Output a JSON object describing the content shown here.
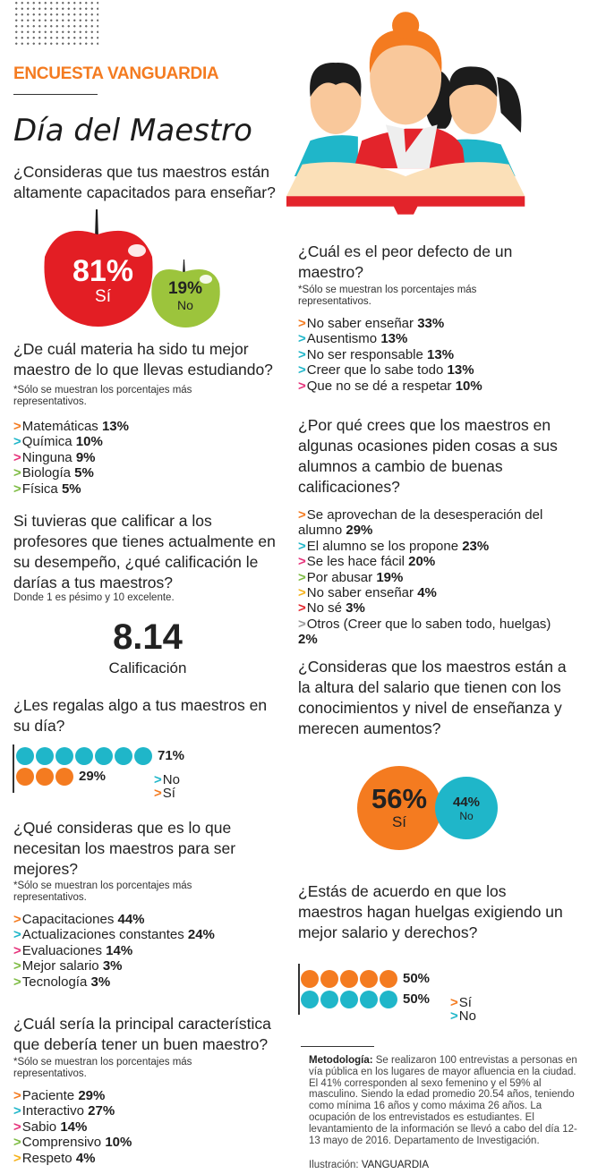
{
  "header": {
    "brand": "ENCUESTA VANGUARDIA",
    "title": "Día del Maestro"
  },
  "colors": {
    "orange": "#f47b20",
    "cyan": "#1fb6c9",
    "pink": "#e6317a",
    "green": "#7dbb42",
    "yellow": "#f6b21b",
    "red": "#e3242b",
    "gray": "#9a9a9a",
    "apple_red": "#e31e24",
    "apple_green": "#9cc43c"
  },
  "q1": {
    "question": "¿Consideras que tus maestros están altamente capacitados para enseñar?",
    "yes_pct": "81%",
    "yes_label": "Sí",
    "no_pct": "19%",
    "no_label": "No"
  },
  "q2": {
    "question": "¿De cuál materia ha sido tu mejor maestro de lo que llevas estudiando?",
    "note": "*Sólo se muestran los porcentajes más representativos.",
    "items": [
      {
        "label": "Matemáticas",
        "value": "13%",
        "color": "#f47b20"
      },
      {
        "label": "Química",
        "value": "10%",
        "color": "#1fb6c9"
      },
      {
        "label": "Ninguna",
        "value": "9%",
        "color": "#e6317a"
      },
      {
        "label": "Biología",
        "value": "5%",
        "color": "#7dbb42"
      },
      {
        "label": "Física",
        "value": "5%",
        "color": "#7dbb42"
      }
    ]
  },
  "q3": {
    "question": "Si tuvieras que calificar a los profesores que tienes actualmente en su desempeño, ¿qué calificación le darías a tus maestros?",
    "note": "Donde 1 es pésimo y 10 excelente.",
    "grade": "8.14",
    "grade_label": "Calificación"
  },
  "q4": {
    "question": "¿Les regalas algo a tus maestros en su día?",
    "rows": [
      {
        "dots": 7,
        "value": "71%",
        "color": "#1fb6c9"
      },
      {
        "dots": 3,
        "value": "29%",
        "color": "#f47b20"
      }
    ],
    "legend": [
      {
        "label": "No",
        "color": "#1fb6c9"
      },
      {
        "label": "Sí",
        "color": "#f47b20"
      }
    ]
  },
  "q5": {
    "question": "¿Qué consideras que es lo que necesitan los maestros para ser mejores?",
    "note": "*Sólo se muestran los porcentajes más representativos.",
    "items": [
      {
        "label": "Capacitaciones",
        "value": "44%",
        "color": "#f47b20"
      },
      {
        "label": "Actualizaciones constantes",
        "value": "24%",
        "color": "#1fb6c9"
      },
      {
        "label": "Evaluaciones",
        "value": "14%",
        "color": "#e6317a"
      },
      {
        "label": "Mejor salario",
        "value": "3%",
        "color": "#7dbb42"
      },
      {
        "label": "Tecnología",
        "value": "3%",
        "color": "#7dbb42"
      }
    ]
  },
  "q6": {
    "question": "¿Cuál  sería la principal característica que debería tener un buen maestro?",
    "note": "*Sólo se muestran los porcentajes más representativos.",
    "items": [
      {
        "label": "Paciente",
        "value": "29%",
        "color": "#f47b20"
      },
      {
        "label": "Interactivo",
        "value": "27%",
        "color": "#1fb6c9"
      },
      {
        "label": "Sabio",
        "value": "14%",
        "color": "#e6317a"
      },
      {
        "label": "Comprensivo",
        "value": "10%",
        "color": "#7dbb42"
      },
      {
        "label": "Respeto",
        "value": "4%",
        "color": "#f6b21b"
      }
    ]
  },
  "q7": {
    "question": "¿Cuál es el peor defecto de un maestro?",
    "note": "*Sólo se muestran los porcentajes más representativos.",
    "items": [
      {
        "label": "No saber enseñar",
        "value": "33%",
        "color": "#f47b20"
      },
      {
        "label": "Ausentismo",
        "value": "13%",
        "color": "#1fb6c9"
      },
      {
        "label": "No ser responsable",
        "value": "13%",
        "color": "#1fb6c9"
      },
      {
        "label": "Creer que lo sabe todo",
        "value": "13%",
        "color": "#1fb6c9"
      },
      {
        "label": "Que no se dé a respetar",
        "value": "10%",
        "color": "#e6317a"
      }
    ]
  },
  "q8": {
    "question": "¿Por qué crees que los maestros en algunas ocasiones piden cosas a sus alumnos a cambio de buenas calificaciones?",
    "items": [
      {
        "label": "Se aprovechan de la desesperación del alumno",
        "value": "29%",
        "color": "#f47b20"
      },
      {
        "label": "El alumno se los propone",
        "value": "23%",
        "color": "#1fb6c9"
      },
      {
        "label": "Se les hace fácil",
        "value": "20%",
        "color": "#e6317a"
      },
      {
        "label": "Por abusar",
        "value": "19%",
        "color": "#7dbb42"
      },
      {
        "label": "No saber enseñar",
        "value": "4%",
        "color": "#f6b21b"
      },
      {
        "label": "No sé",
        "value": "3%",
        "color": "#e3242b"
      },
      {
        "label": "Otros (Creer que lo saben todo, huelgas)",
        "value": "2%",
        "color": "#9a9a9a"
      }
    ]
  },
  "q9": {
    "question": "¿Consideras que los maestros están a la altura  del salario que tienen con los conocimientos y nivel de enseñanza y merecen aumentos?",
    "yes_pct": "56%",
    "yes_label": "Sí",
    "no_pct": "44%",
    "no_label": "No"
  },
  "q10": {
    "question": "¿Estás de acuerdo en que los maestros hagan huelgas exigiendo un mejor salario y derechos?",
    "rows": [
      {
        "dots": 5,
        "value": "50%",
        "color": "#f47b20"
      },
      {
        "dots": 5,
        "value": "50%",
        "color": "#1fb6c9"
      }
    ],
    "legend": [
      {
        "label": "Sí",
        "color": "#f47b20"
      },
      {
        "label": "No",
        "color": "#1fb6c9"
      }
    ]
  },
  "footer": {
    "method_label": "Metodología:",
    "method_text": " Se realizaron 100 entrevistas a personas en vía pública en los lugares de mayor afluencia en la ciudad. El 41% corresponden al sexo femenino y el 59% al masculino. Siendo la edad promedio 20.54 años, teniendo como mínima 16 años y como máxima 26 años. La ocupación de los entrevistados es estudiantes. El levantamiento de la información se llevó a cabo del día 12-13 mayo de 2016. Departamento de Investigación.",
    "credit_label": "Ilustración: ",
    "credit_name": "VANGUARDIA"
  },
  "chart_data": [
    {
      "type": "pie",
      "title": "¿Consideras que tus maestros están altamente capacitados para enseñar?",
      "categories": [
        "Sí",
        "No"
      ],
      "values": [
        81,
        19
      ]
    },
    {
      "type": "bar",
      "title": "¿De cuál materia ha sido tu mejor maestro?",
      "categories": [
        "Matemáticas",
        "Química",
        "Ninguna",
        "Biología",
        "Física"
      ],
      "values": [
        13,
        10,
        9,
        5,
        5
      ]
    },
    {
      "type": "table",
      "title": "Calificación a los maestros",
      "values": [
        8.14
      ]
    },
    {
      "type": "bar",
      "title": "¿Les regalas algo a tus maestros en su día?",
      "categories": [
        "No",
        "Sí"
      ],
      "values": [
        71,
        29
      ]
    },
    {
      "type": "bar",
      "title": "¿Qué necesitan los maestros para ser mejores?",
      "categories": [
        "Capacitaciones",
        "Actualizaciones constantes",
        "Evaluaciones",
        "Mejor salario",
        "Tecnología"
      ],
      "values": [
        44,
        24,
        14,
        3,
        3
      ]
    },
    {
      "type": "bar",
      "title": "Principal característica de un buen maestro",
      "categories": [
        "Paciente",
        "Interactivo",
        "Sabio",
        "Comprensivo",
        "Respeto"
      ],
      "values": [
        29,
        27,
        14,
        10,
        4
      ]
    },
    {
      "type": "bar",
      "title": "Peor defecto de un maestro",
      "categories": [
        "No saber enseñar",
        "Ausentismo",
        "No ser responsable",
        "Creer que lo sabe todo",
        "Que no se dé a respetar"
      ],
      "values": [
        33,
        13,
        13,
        13,
        10
      ]
    },
    {
      "type": "bar",
      "title": "¿Por qué piden cosas a cambio de calificaciones?",
      "categories": [
        "Se aprovechan de la desesperación del alumno",
        "El alumno se los propone",
        "Se les hace fácil",
        "Por abusar",
        "No saber enseñar",
        "No sé",
        "Otros"
      ],
      "values": [
        29,
        23,
        20,
        19,
        4,
        3,
        2
      ]
    },
    {
      "type": "pie",
      "title": "¿Están a la altura del salario y merecen aumentos?",
      "categories": [
        "Sí",
        "No"
      ],
      "values": [
        56,
        44
      ]
    },
    {
      "type": "bar",
      "title": "¿De acuerdo con huelgas?",
      "categories": [
        "Sí",
        "No"
      ],
      "values": [
        50,
        50
      ]
    }
  ]
}
